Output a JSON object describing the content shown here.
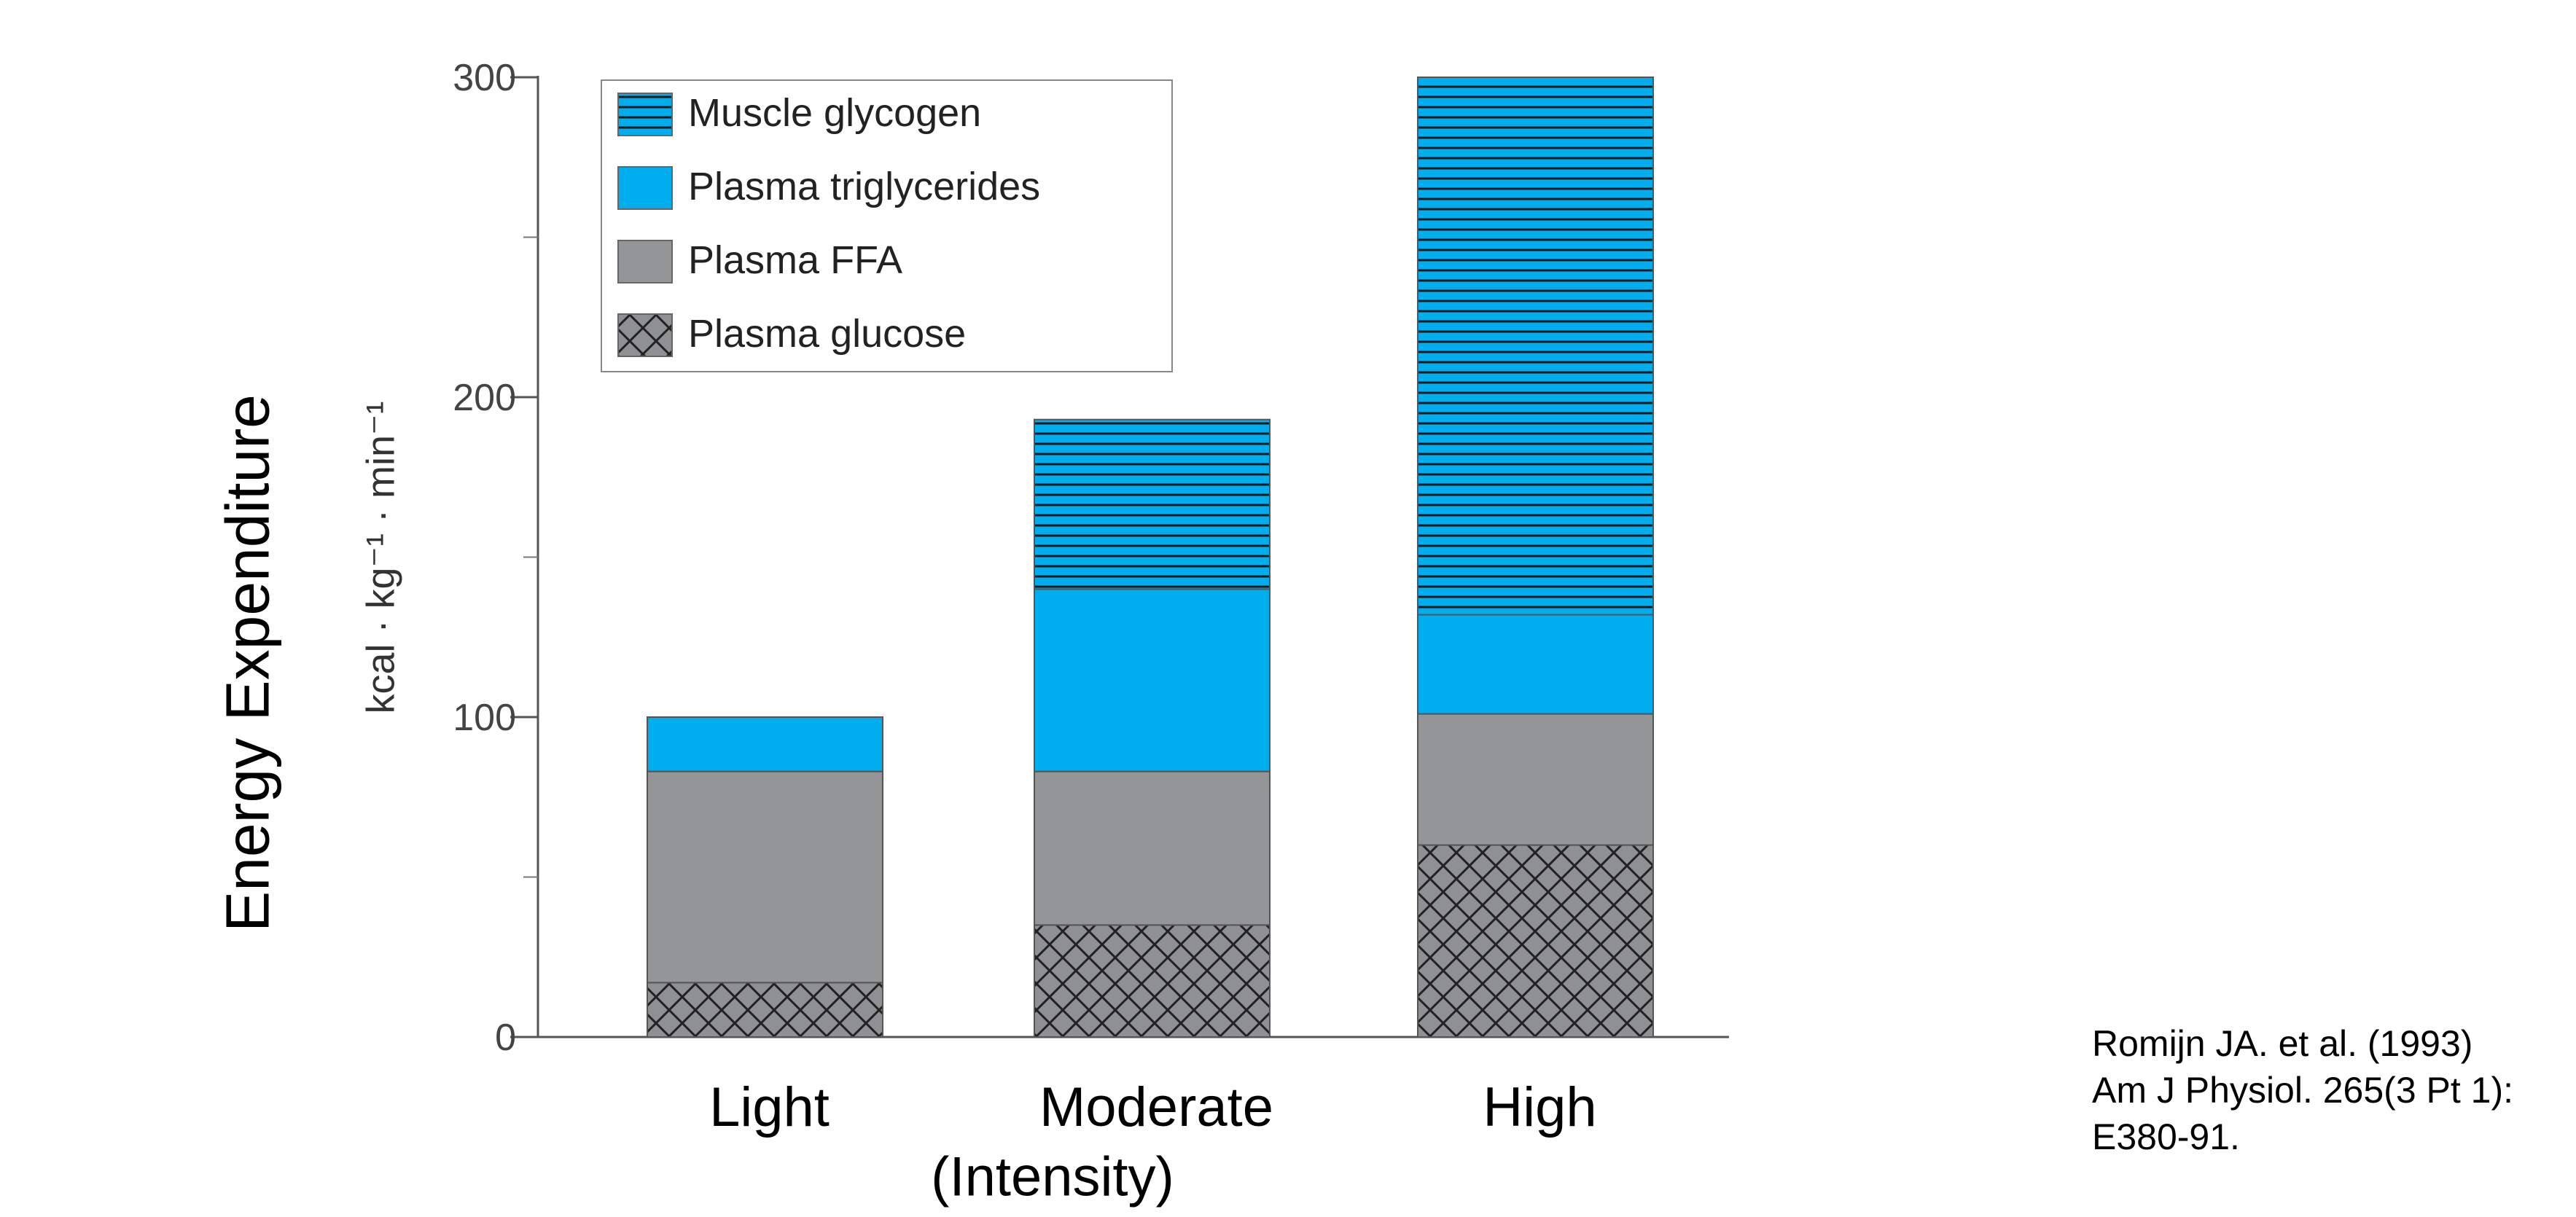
{
  "chart_data": {
    "type": "bar",
    "stacked": true,
    "categories": [
      "Light",
      "Moderate",
      "High"
    ],
    "series": [
      {
        "name": "Plasma glucose",
        "values": [
          17,
          35,
          60
        ],
        "color": "#8f9093",
        "pattern": "crosshatch"
      },
      {
        "name": "Plasma FFA",
        "values": [
          66,
          48,
          41
        ],
        "color": "#939597",
        "pattern": "solid"
      },
      {
        "name": "Plasma triglycerides",
        "values": [
          17,
          57,
          31
        ],
        "color": "#00aeef",
        "pattern": "solid"
      },
      {
        "name": "Muscle glycogen",
        "values": [
          0,
          53,
          168
        ],
        "color": "#00aeef",
        "pattern": "horizontal-lines"
      }
    ],
    "legend_order": [
      "Muscle glycogen",
      "Plasma triglycerides",
      "Plasma FFA",
      "Plasma glucose"
    ],
    "legend_position": "top-left",
    "ylim": [
      0,
      300
    ],
    "yticks": [
      "0",
      "100",
      "200",
      "300"
    ],
    "ylabel": "Energy Expenditure",
    "yunit": "kcal · kg⁻¹ · min⁻¹",
    "xlabel": "(Intensity)",
    "grid": false
  },
  "citation": {
    "line1": "Romijn JA. et al. (1993)",
    "line2": "Am J Physiol. 265(3 Pt 1):",
    "line3": "E380-91."
  }
}
